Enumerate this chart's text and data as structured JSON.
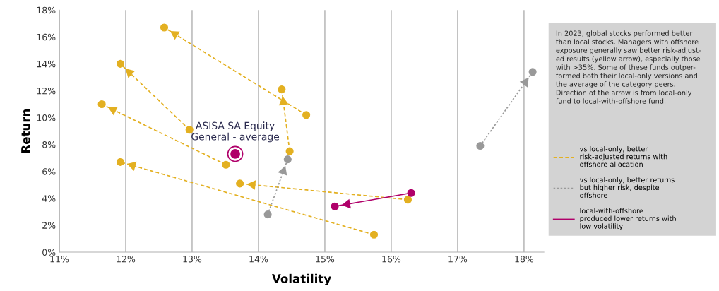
{
  "chart_data": {
    "type": "line",
    "xlabel": "Volatility",
    "ylabel": "Return",
    "xlim": [
      11,
      18.3
    ],
    "ylim": [
      0,
      18
    ],
    "xticks": [
      {
        "value": 11,
        "label": "11%"
      },
      {
        "value": 12,
        "label": "12%"
      },
      {
        "value": 13,
        "label": "13%"
      },
      {
        "value": 14,
        "label": "14%"
      },
      {
        "value": 15,
        "label": "15%"
      },
      {
        "value": 16,
        "label": "16%"
      },
      {
        "value": 17,
        "label": "17%"
      },
      {
        "value": 18,
        "label": "18%"
      }
    ],
    "yticks": [
      {
        "value": 0,
        "label": "0%"
      },
      {
        "value": 2,
        "label": "2%"
      },
      {
        "value": 4,
        "label": "4%"
      },
      {
        "value": 6,
        "label": "6%"
      },
      {
        "value": 8,
        "label": "8%"
      },
      {
        "value": 10,
        "label": "10%"
      },
      {
        "value": 12,
        "label": "12%"
      },
      {
        "value": 14,
        "label": "14%"
      },
      {
        "value": 16,
        "label": "16%"
      },
      {
        "value": 18,
        "label": "18%"
      }
    ],
    "grid": "x",
    "legend": "right",
    "marker": "circle",
    "series": [
      {
        "name": "vs local-only, better\nrisk-adjusted returns with\noffshore allocation",
        "color": "#e3b021",
        "line_style": "dashed",
        "x": [
          14.72,
          12.58
        ],
        "values": [
          10.2,
          16.7
        ]
      },
      {
        "color": "#e3b021",
        "line_style": "dashed",
        "x": [
          12.96,
          11.92
        ],
        "values": [
          9.1,
          14.0
        ]
      },
      {
        "color": "#e3b021",
        "line_style": "dashed",
        "x": [
          13.51,
          11.64
        ],
        "values": [
          6.5,
          11.0
        ]
      },
      {
        "color": "#e3b021",
        "line_style": "dashed",
        "x": [
          15.74,
          11.92
        ],
        "values": [
          1.3,
          6.7
        ]
      },
      {
        "color": "#e3b021",
        "line_style": "dashed",
        "x": [
          16.25,
          13.72
        ],
        "values": [
          3.9,
          5.1
        ]
      },
      {
        "color": "#e3b021",
        "line_style": "dashed",
        "x": [
          14.47,
          14.35
        ],
        "values": [
          7.5,
          12.1
        ]
      },
      {
        "name": "vs local-only, better returns\nbut higher risk, despite\noffshore",
        "color": "#999999",
        "line_style": "dotted",
        "x": [
          14.14,
          14.44
        ],
        "values": [
          2.8,
          6.9
        ]
      },
      {
        "color": "#999999",
        "line_style": "dotted",
        "x": [
          17.34,
          18.13
        ],
        "values": [
          7.9,
          13.4
        ]
      },
      {
        "name": "local-with-offshore\nproduced lower returns with\nlow volatility",
        "color": "#b0006a",
        "line_style": "solid",
        "x": [
          16.3,
          15.15
        ],
        "values": [
          4.4,
          3.4
        ]
      },
      {
        "type": "scatter",
        "name": "ASISA SA Equity\nGeneral - average",
        "color": "#b0006a",
        "x": [
          13.65
        ],
        "values": [
          7.3
        ]
      }
    ],
    "annotations": [
      "In 2023, global stocks performed better\nthan local stocks. Managers with offshore\nexposure generally saw better risk-adjust-\ned results (yellow arrow), especially those\nwith >35%. Some of these funds outper-\nformed both their local-only versions and\nthe average of the category peers.\nDirection of the arrow is from local-only\nfund to local-with-offshore fund."
    ]
  }
}
